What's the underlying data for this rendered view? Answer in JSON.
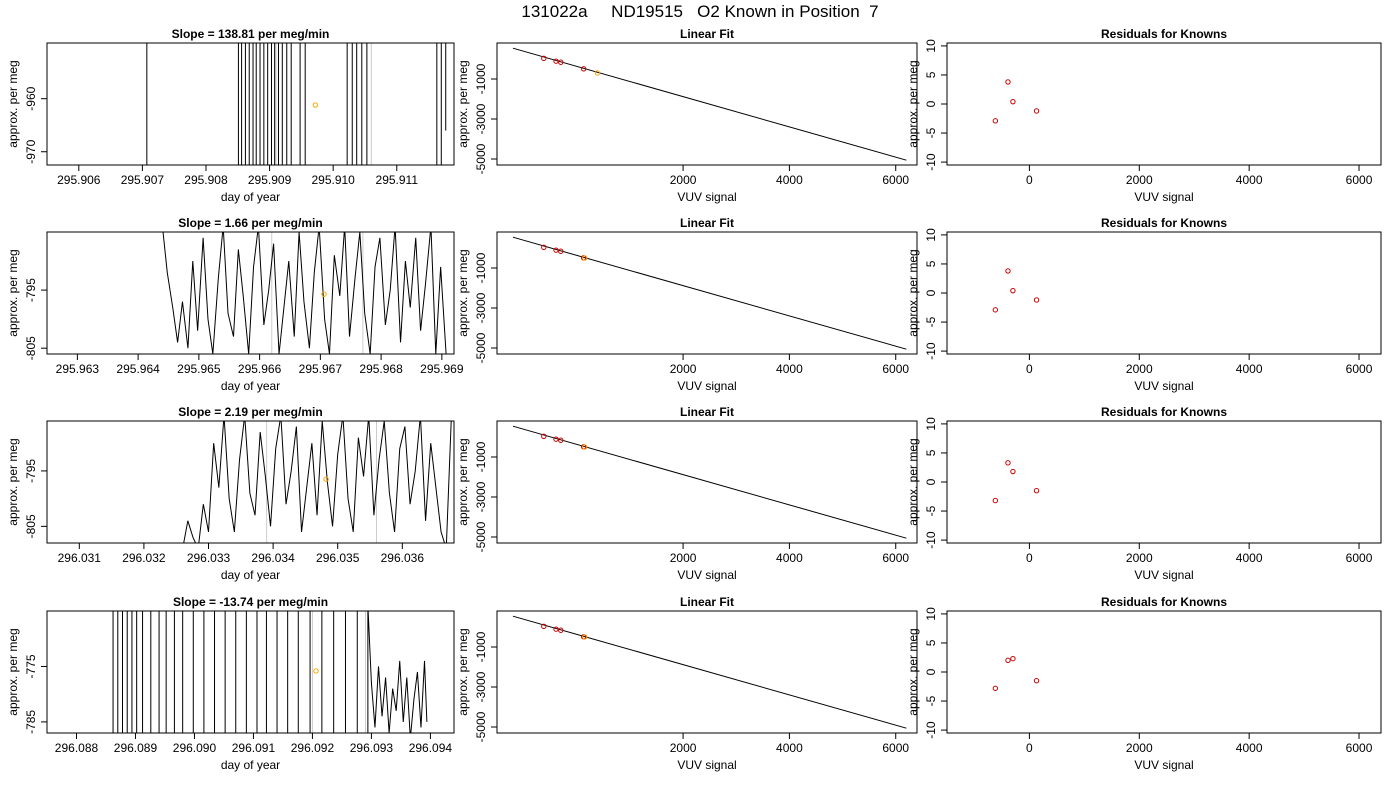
{
  "figure_title": "131022a     ND19515   O2 Known in Position  7",
  "colors": {
    "line": "#000000",
    "current_point": "#ffa500",
    "known_point": "#cc0000",
    "reference_line": "#cccccc"
  },
  "chart_data": [
    {
      "type": "line",
      "row": 0,
      "col": 0,
      "title": "Slope =  138.81  per meg/min",
      "xlabel": "day of year",
      "ylabel": "approx. per meg",
      "xlim": [
        295.9055,
        295.9119
      ],
      "ylim": [
        -972.5,
        -949.5
      ],
      "xticks": [
        295.906,
        295.907,
        295.908,
        295.909,
        295.91,
        295.911
      ],
      "xtick_labels": [
        "295.906",
        "295.907",
        "295.908",
        "295.909",
        "295.910",
        "295.911"
      ],
      "yticks": [
        -960,
        -970
      ],
      "ytick_labels": [
        "-960",
        "-970"
      ],
      "vlines": [
        295.9091,
        295.9106
      ],
      "x": [
        295.90707,
        295.90707,
        295.90851,
        295.90851,
        295.90856,
        295.90856,
        295.90862,
        295.90862,
        295.90868,
        295.90868,
        295.90874,
        295.90874,
        295.90879,
        295.90879,
        295.90885,
        295.90885,
        295.90891,
        295.90891,
        295.90897,
        295.90897,
        295.90903,
        295.90903,
        295.90908,
        295.90908,
        295.90914,
        295.90914,
        295.9092,
        295.9092,
        295.90927,
        295.90927,
        295.90934,
        295.90934,
        295.90948,
        295.90948,
        295.90956,
        295.90956,
        295.91022,
        295.91022,
        295.9103,
        295.9103,
        295.91037,
        295.91037,
        295.91045,
        295.91045,
        295.91053,
        295.91053,
        295.91163,
        295.91163,
        295.9117,
        295.9117,
        295.91177,
        295.91177
      ],
      "y": [
        -975,
        -945,
        -945,
        -975,
        -975,
        -945,
        -945,
        -975,
        -975,
        -945,
        -945,
        -975,
        -975,
        -945,
        -945,
        -975,
        -975,
        -945,
        -945,
        -975,
        -975,
        -945,
        -945,
        -975,
        -975,
        -945,
        -945,
        -975,
        -975,
        -945,
        -945,
        -975,
        -975,
        -945,
        -945,
        -975,
        -975,
        -945,
        -945,
        -975,
        -975,
        -945,
        -945,
        -975,
        -975,
        -945,
        -945,
        -975,
        -975,
        -945,
        -945,
        -966
      ],
      "markers": [
        {
          "x": 295.90972,
          "y": -961.2,
          "role": "current"
        }
      ]
    },
    {
      "type": "scatter",
      "row": 0,
      "col": 1,
      "title": "Linear Fit",
      "xlabel": "VUV signal",
      "ylabel": "approx. per meg",
      "xlim": [
        -1500,
        6400
      ],
      "ylim": [
        -5300,
        800
      ],
      "xticks": [
        2000,
        4000,
        6000
      ],
      "xtick_labels": [
        "2000",
        "4000",
        "6000"
      ],
      "yticks": [
        -1000,
        -3000,
        -5000
      ],
      "ytick_labels": [
        "-1000",
        "-3000",
        "-5000"
      ],
      "fit_line": {
        "x": [
          -1200,
          6200
        ],
        "y": [
          540,
          -5060
        ]
      },
      "known_points": {
        "x": [
          -620,
          -390,
          -300,
          130
        ],
        "y": [
          34,
          -107,
          -163,
          -490
        ]
      },
      "current_point": {
        "x": 390,
        "y": -700
      }
    },
    {
      "type": "scatter",
      "row": 0,
      "col": 2,
      "title": "Residuals for Knowns",
      "xlabel": "VUV signal",
      "ylabel": "approx. per meg",
      "xlim": [
        -1500,
        6400
      ],
      "ylim": [
        -10.5,
        10.5
      ],
      "xticks": [
        0,
        2000,
        4000,
        6000
      ],
      "xtick_labels": [
        "0",
        "2000",
        "4000",
        "6000"
      ],
      "yticks": [
        10,
        5,
        0,
        -5,
        -10
      ],
      "ytick_labels": [
        "10",
        "5",
        "0",
        "-5",
        "-10"
      ],
      "x": [
        -620,
        -390,
        -300,
        130
      ],
      "y": [
        -2.9,
        3.8,
        0.4,
        -1.2
      ]
    },
    {
      "type": "line",
      "row": 1,
      "col": 0,
      "title": "Slope =  1.66  per meg/min",
      "xlabel": "day of year",
      "ylabel": "approx. per meg",
      "xlim": [
        295.9625,
        295.9692
      ],
      "ylim": [
        -806,
        -785
      ],
      "xticks": [
        295.963,
        295.964,
        295.965,
        295.966,
        295.967,
        295.968,
        295.969
      ],
      "xtick_labels": [
        "295.963",
        "295.964",
        "295.965",
        "295.966",
        "295.967",
        "295.968",
        "295.969"
      ],
      "yticks": [
        -795,
        -805
      ],
      "ytick_labels": [
        "-795",
        "-805"
      ],
      "vlines": [
        295.9662,
        295.9677
      ],
      "x": [
        295.9644,
        295.96448,
        295.96457,
        295.96465,
        295.96473,
        295.96482,
        295.9649,
        295.96498,
        295.96507,
        295.96515,
        295.96523,
        295.96532,
        295.9654,
        295.96548,
        295.96557,
        295.96565,
        295.96573,
        295.96582,
        295.9659,
        295.96598,
        295.96607,
        295.96615,
        295.96623,
        295.96632,
        295.9664,
        295.96648,
        295.96657,
        295.96665,
        295.96673,
        295.96682,
        295.9669,
        295.96698,
        295.96707,
        295.96715,
        295.96723,
        295.96732,
        295.9674,
        295.96748,
        295.96757,
        295.96765,
        295.96773,
        295.96782,
        295.9679,
        295.96798,
        295.96807,
        295.96815,
        295.96823,
        295.96832,
        295.9684,
        295.96848,
        295.96857,
        295.96865,
        295.96873,
        295.96882,
        295.9689,
        295.96898,
        295.96907
      ],
      "y": [
        -784,
        -792,
        -798,
        -804,
        -797,
        -805,
        -790,
        -802,
        -786,
        -800,
        -806,
        -793,
        -784,
        -799,
        -803,
        -788,
        -796,
        -806,
        -791,
        -784,
        -801,
        -795,
        -787,
        -806,
        -798,
        -790,
        -803,
        -785,
        -797,
        -805,
        -792,
        -784,
        -800,
        -806,
        -789,
        -796,
        -784,
        -803,
        -793,
        -785,
        -799,
        -806,
        -791,
        -786,
        -801,
        -795,
        -784,
        -804,
        -790,
        -798,
        -786,
        -802,
        -794,
        -784,
        -806,
        -791,
        -806
      ],
      "markers": [
        {
          "x": 295.96706,
          "y": -795.7,
          "role": "current"
        }
      ]
    },
    {
      "type": "scatter",
      "row": 1,
      "col": 1,
      "title": "Linear Fit",
      "xlabel": "VUV signal",
      "ylabel": "approx. per meg",
      "xlim": [
        -1500,
        6400
      ],
      "ylim": [
        -5300,
        800
      ],
      "xticks": [
        2000,
        4000,
        6000
      ],
      "xtick_labels": [
        "2000",
        "4000",
        "6000"
      ],
      "yticks": [
        -1000,
        -3000,
        -5000
      ],
      "ytick_labels": [
        "-1000",
        "-3000",
        "-5000"
      ],
      "fit_line": {
        "x": [
          -1200,
          6200
        ],
        "y": [
          540,
          -5060
        ]
      },
      "known_points": {
        "x": [
          -620,
          -390,
          -300,
          130
        ],
        "y": [
          34,
          -107,
          -163,
          -490
        ]
      },
      "current_point": {
        "x": 150,
        "y": -500
      }
    },
    {
      "type": "scatter",
      "row": 1,
      "col": 2,
      "title": "Residuals for Knowns",
      "xlabel": "VUV signal",
      "ylabel": "approx. per meg",
      "xlim": [
        -1500,
        6400
      ],
      "ylim": [
        -10.5,
        10.5
      ],
      "xticks": [
        0,
        2000,
        4000,
        6000
      ],
      "xtick_labels": [
        "0",
        "2000",
        "4000",
        "6000"
      ],
      "yticks": [
        10,
        5,
        0,
        -5,
        -10
      ],
      "ytick_labels": [
        "10",
        "5",
        "0",
        "-5",
        "-10"
      ],
      "x": [
        -620,
        -390,
        -300,
        130
      ],
      "y": [
        -2.9,
        3.8,
        0.4,
        -1.2
      ]
    },
    {
      "type": "line",
      "row": 2,
      "col": 0,
      "title": "Slope =  2.19  per meg/min",
      "xlabel": "day of year",
      "ylabel": "approx. per meg",
      "xlim": [
        296.0305,
        296.0368
      ],
      "ylim": [
        -808,
        -786
      ],
      "xticks": [
        296.031,
        296.032,
        296.033,
        296.034,
        296.035,
        296.036
      ],
      "xtick_labels": [
        "296.031",
        "296.032",
        "296.033",
        "296.034",
        "296.035",
        "296.036"
      ],
      "yticks": [
        -795,
        -805
      ],
      "ytick_labels": [
        "-795",
        "-805"
      ],
      "vlines": [
        296.0339,
        296.0356
      ],
      "x": [
        296.0326,
        296.03268,
        296.03276,
        296.03284,
        296.03292,
        296.033,
        296.03308,
        296.03316,
        296.03324,
        296.03332,
        296.0334,
        296.03348,
        296.03356,
        296.03364,
        296.03372,
        296.0338,
        296.03388,
        296.03396,
        296.03404,
        296.03412,
        296.0342,
        296.03428,
        296.03436,
        296.03444,
        296.03452,
        296.0346,
        296.03468,
        296.03476,
        296.03484,
        296.03492,
        296.035,
        296.03508,
        296.03516,
        296.03524,
        296.03532,
        296.0354,
        296.03548,
        296.03556,
        296.03564,
        296.03572,
        296.0358,
        296.03588,
        296.03596,
        296.03604,
        296.03612,
        296.0362,
        296.03628,
        296.03636,
        296.03644,
        296.03652,
        296.0366,
        296.03668,
        296.03676
      ],
      "y": [
        -809,
        -804,
        -807,
        -809,
        -801,
        -806,
        -790,
        -798,
        -785,
        -800,
        -806,
        -793,
        -785,
        -799,
        -803,
        -788,
        -796,
        -805,
        -791,
        -785,
        -801,
        -795,
        -787,
        -806,
        -798,
        -790,
        -803,
        -786,
        -797,
        -805,
        -792,
        -785,
        -800,
        -806,
        -789,
        -796,
        -785,
        -803,
        -793,
        -786,
        -799,
        -806,
        -791,
        -787,
        -801,
        -795,
        -785,
        -804,
        -790,
        -798,
        -806,
        -809,
        -785
      ],
      "markers": [
        {
          "x": 296.03482,
          "y": -796.5,
          "role": "current"
        }
      ]
    },
    {
      "type": "scatter",
      "row": 2,
      "col": 1,
      "title": "Linear Fit",
      "xlabel": "VUV signal",
      "ylabel": "approx. per meg",
      "xlim": [
        -1500,
        6400
      ],
      "ylim": [
        -5300,
        800
      ],
      "xticks": [
        2000,
        4000,
        6000
      ],
      "xtick_labels": [
        "2000",
        "4000",
        "6000"
      ],
      "yticks": [
        -1000,
        -3000,
        -5000
      ],
      "ytick_labels": [
        "-1000",
        "-3000",
        "-5000"
      ],
      "fit_line": {
        "x": [
          -1200,
          6200
        ],
        "y": [
          540,
          -5060
        ]
      },
      "known_points": {
        "x": [
          -620,
          -390,
          -300,
          130
        ],
        "y": [
          34,
          -107,
          -163,
          -490
        ]
      },
      "current_point": {
        "x": 150,
        "y": -500
      }
    },
    {
      "type": "scatter",
      "row": 2,
      "col": 2,
      "title": "Residuals for Knowns",
      "xlabel": "VUV signal",
      "ylabel": "approx. per meg",
      "xlim": [
        -1500,
        6400
      ],
      "ylim": [
        -10.5,
        10.5
      ],
      "xticks": [
        0,
        2000,
        4000,
        6000
      ],
      "xtick_labels": [
        "0",
        "2000",
        "4000",
        "6000"
      ],
      "yticks": [
        10,
        5,
        0,
        -5,
        -10
      ],
      "ytick_labels": [
        "10",
        "5",
        "0",
        "-5",
        "-10"
      ],
      "x": [
        -620,
        -390,
        -300,
        130
      ],
      "y": [
        -3.2,
        3.3,
        1.8,
        -1.5
      ]
    },
    {
      "type": "line",
      "row": 3,
      "col": 0,
      "title": "Slope =  -13.74  per meg/min",
      "xlabel": "day of year",
      "ylabel": "approx. per meg",
      "xlim": [
        296.0875,
        296.0944
      ],
      "ylim": [
        -787,
        -765
      ],
      "xticks": [
        296.088,
        296.089,
        296.09,
        296.091,
        296.092,
        296.093,
        296.094
      ],
      "xtick_labels": [
        "296.088",
        "296.089",
        "296.090",
        "296.091",
        "296.092",
        "296.093",
        "296.094"
      ],
      "yticks": [
        -775,
        -785
      ],
      "ytick_labels": [
        "-775",
        "-785"
      ],
      "vlines": [
        296.092,
        296.0929
      ],
      "x": [
        296.08862,
        296.08862,
        296.0887,
        296.0887,
        296.08878,
        296.08878,
        296.08886,
        296.08886,
        296.08894,
        296.08894,
        296.08902,
        296.08902,
        296.08912,
        296.08912,
        296.08926,
        296.08926,
        296.0894,
        296.0894,
        296.08952,
        296.08952,
        296.08966,
        296.08966,
        296.0898,
        296.0898,
        296.08998,
        296.08998,
        296.09016,
        296.09016,
        296.09034,
        296.09034,
        296.09052,
        296.09052,
        296.0907,
        296.0907,
        296.09088,
        296.09088,
        296.09106,
        296.09106,
        296.09122,
        296.09122,
        296.0914,
        296.0914,
        296.09158,
        296.09158,
        296.09176,
        296.09176,
        296.09196,
        296.09196,
        296.09216,
        296.09216,
        296.09236,
        296.09236,
        296.09256,
        296.09256,
        296.09276,
        296.09276,
        296.09294,
        296.09294,
        296.093,
        296.09306,
        296.09312,
        296.09318,
        296.09324,
        296.0933,
        296.09336,
        296.09342,
        296.09348,
        296.09354,
        296.0936,
        296.09366,
        296.09372,
        296.09378,
        296.09384,
        296.0939,
        296.09394
      ],
      "y": [
        -788,
        -764,
        -764,
        -788,
        -788,
        -764,
        -764,
        -788,
        -788,
        -764,
        -764,
        -788,
        -788,
        -764,
        -764,
        -788,
        -788,
        -764,
        -764,
        -788,
        -788,
        -764,
        -764,
        -788,
        -788,
        -764,
        -764,
        -788,
        -788,
        -764,
        -764,
        -788,
        -788,
        -764,
        -764,
        -788,
        -788,
        -764,
        -764,
        -788,
        -788,
        -764,
        -764,
        -788,
        -788,
        -764,
        -764,
        -788,
        -788,
        -764,
        -764,
        -788,
        -788,
        -764,
        -764,
        -788,
        -788,
        -764,
        -778,
        -786,
        -775,
        -784,
        -777,
        -787,
        -779,
        -783,
        -774,
        -785,
        -777,
        -788,
        -781,
        -776,
        -786,
        -774,
        -785
      ],
      "markers": [
        {
          "x": 296.09206,
          "y": -775.8,
          "role": "current"
        }
      ]
    },
    {
      "type": "scatter",
      "row": 3,
      "col": 1,
      "title": "Linear Fit",
      "xlabel": "VUV signal",
      "ylabel": "approx. per meg",
      "xlim": [
        -1500,
        6400
      ],
      "ylim": [
        -5300,
        800
      ],
      "xticks": [
        2000,
        4000,
        6000
      ],
      "xtick_labels": [
        "2000",
        "4000",
        "6000"
      ],
      "yticks": [
        -1000,
        -3000,
        -5000
      ],
      "ytick_labels": [
        "-1000",
        "-3000",
        "-5000"
      ],
      "fit_line": {
        "x": [
          -1200,
          6200
        ],
        "y": [
          540,
          -5060
        ]
      },
      "known_points": {
        "x": [
          -620,
          -390,
          -300,
          130
        ],
        "y": [
          34,
          -107,
          -163,
          -490
        ]
      },
      "current_point": {
        "x": 150,
        "y": -500
      }
    },
    {
      "type": "scatter",
      "row": 3,
      "col": 2,
      "title": "Residuals for Knowns",
      "xlabel": "VUV signal",
      "ylabel": "approx. per meg",
      "xlim": [
        -1500,
        6400
      ],
      "ylim": [
        -10.5,
        10.5
      ],
      "xticks": [
        0,
        2000,
        4000,
        6000
      ],
      "xtick_labels": [
        "0",
        "2000",
        "4000",
        "6000"
      ],
      "yticks": [
        10,
        5,
        0,
        -5,
        -10
      ],
      "ytick_labels": [
        "10",
        "5",
        "0",
        "-5",
        "-10"
      ],
      "x": [
        -620,
        -390,
        -300,
        130
      ],
      "y": [
        -2.8,
        2.0,
        2.3,
        -1.5
      ]
    }
  ]
}
